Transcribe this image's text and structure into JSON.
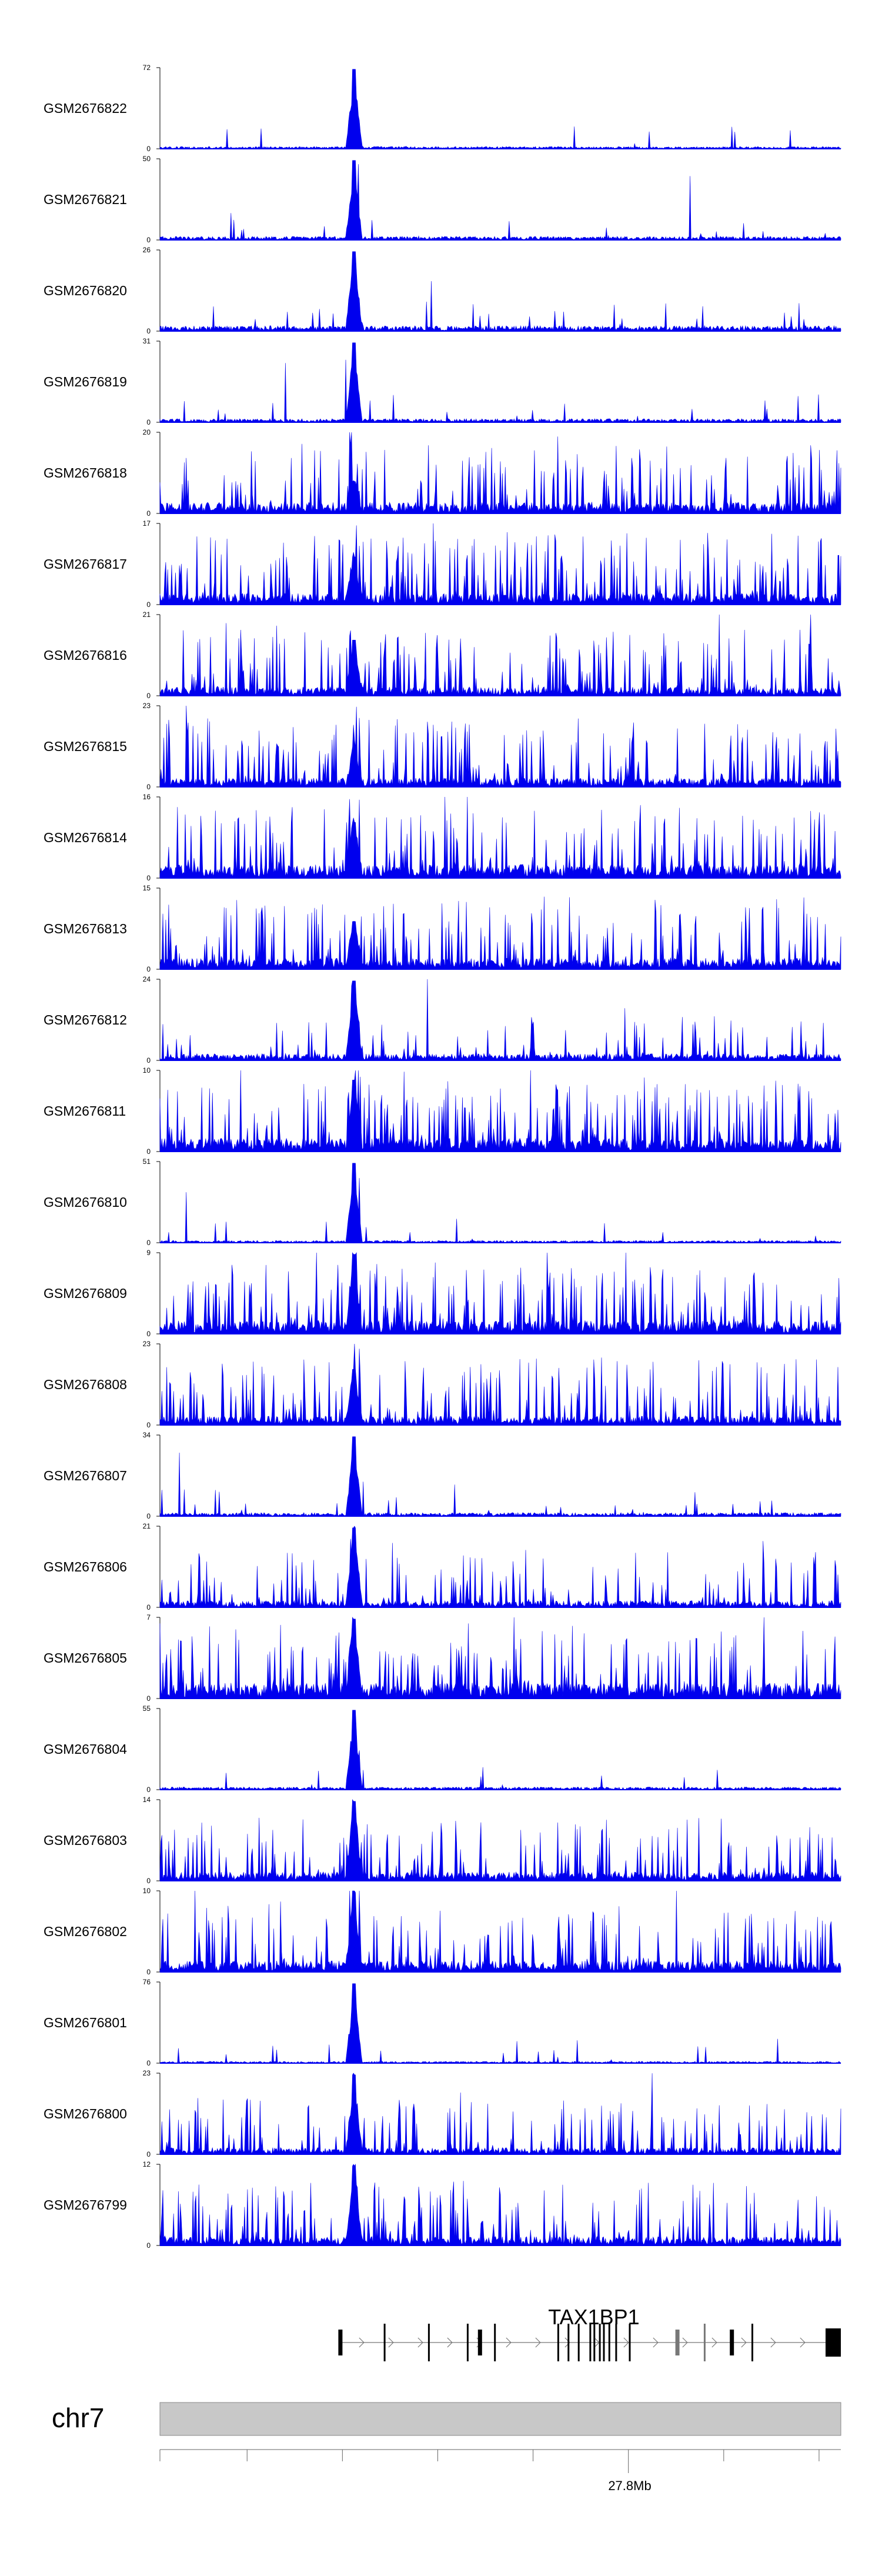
{
  "chart_data": {
    "type": "area",
    "fill_color": "#0000ee",
    "tracks": [
      {
        "name": "GSM2676822",
        "ymax": "72",
        "ymin": "0",
        "peak": 1.0,
        "bg": 0.05,
        "var": 0.1
      },
      {
        "name": "GSM2676821",
        "ymax": "50",
        "ymin": "0",
        "peak": 1.0,
        "bg": 0.08,
        "var": 0.12
      },
      {
        "name": "GSM2676820",
        "ymax": "26",
        "ymin": "0",
        "peak": 1.0,
        "bg": 0.12,
        "var": 0.15
      },
      {
        "name": "GSM2676819",
        "ymax": "31",
        "ymin": "0",
        "peak": 1.0,
        "bg": 0.08,
        "var": 0.12
      },
      {
        "name": "GSM2676818",
        "ymax": "20",
        "ymin": "0",
        "peak": 0.4,
        "bg": 0.25,
        "var": 0.9
      },
      {
        "name": "GSM2676817",
        "ymax": "17",
        "ymin": "0",
        "peak": 0.6,
        "bg": 0.25,
        "var": 0.95
      },
      {
        "name": "GSM2676816",
        "ymax": "21",
        "ymin": "0",
        "peak": 0.7,
        "bg": 0.2,
        "var": 0.85
      },
      {
        "name": "GSM2676815",
        "ymax": "23",
        "ymin": "0",
        "peak": 0.5,
        "bg": 0.2,
        "var": 0.95
      },
      {
        "name": "GSM2676814",
        "ymax": "16",
        "ymin": "0",
        "peak": 0.7,
        "bg": 0.3,
        "var": 0.9
      },
      {
        "name": "GSM2676813",
        "ymax": "15",
        "ymin": "0",
        "peak": 0.6,
        "bg": 0.25,
        "var": 0.95
      },
      {
        "name": "GSM2676812",
        "ymax": "24",
        "ymin": "0",
        "peak": 1.0,
        "bg": 0.15,
        "var": 0.45
      },
      {
        "name": "GSM2676811",
        "ymax": "10",
        "ymin": "0",
        "peak": 0.9,
        "bg": 0.3,
        "var": 0.9
      },
      {
        "name": "GSM2676810",
        "ymax": "51",
        "ymin": "0",
        "peak": 1.0,
        "bg": 0.05,
        "var": 0.1
      },
      {
        "name": "GSM2676809",
        "ymax": "9",
        "ymin": "0",
        "peak": 1.0,
        "bg": 0.3,
        "var": 0.9
      },
      {
        "name": "GSM2676808",
        "ymax": "23",
        "ymin": "0",
        "peak": 0.7,
        "bg": 0.2,
        "var": 0.95
      },
      {
        "name": "GSM2676807",
        "ymax": "34",
        "ymin": "0",
        "peak": 1.0,
        "bg": 0.08,
        "var": 0.15
      },
      {
        "name": "GSM2676806",
        "ymax": "21",
        "ymin": "0",
        "peak": 1.0,
        "bg": 0.15,
        "var": 0.7
      },
      {
        "name": "GSM2676805",
        "ymax": "7",
        "ymin": "0",
        "peak": 1.0,
        "bg": 0.35,
        "var": 0.9
      },
      {
        "name": "GSM2676804",
        "ymax": "55",
        "ymin": "0",
        "peak": 1.0,
        "bg": 0.06,
        "var": 0.1
      },
      {
        "name": "GSM2676803",
        "ymax": "14",
        "ymin": "0",
        "peak": 1.0,
        "bg": 0.2,
        "var": 0.8
      },
      {
        "name": "GSM2676802",
        "ymax": "10",
        "ymin": "0",
        "peak": 1.0,
        "bg": 0.25,
        "var": 0.9
      },
      {
        "name": "GSM2676801",
        "ymax": "76",
        "ymin": "0",
        "peak": 1.0,
        "bg": 0.04,
        "var": 0.08
      },
      {
        "name": "GSM2676800",
        "ymax": "23",
        "ymin": "0",
        "peak": 1.0,
        "bg": 0.15,
        "var": 0.65
      },
      {
        "name": "GSM2676799",
        "ymax": "12",
        "ymin": "0",
        "peak": 1.0,
        "bg": 0.2,
        "var": 0.85
      }
    ],
    "gene": {
      "name": "TAX1BP1",
      "strand": "+",
      "exons": [
        0.265,
        0.33,
        0.395,
        0.452,
        0.47,
        0.492,
        0.585,
        0.6,
        0.615,
        0.632,
        0.638,
        0.646,
        0.652,
        0.66,
        0.67,
        0.69,
        0.76,
        0.8,
        0.84,
        0.87
      ]
    },
    "chromosome": {
      "name": "chr7",
      "tick_label": "27.8Mb",
      "tick_label_fraction": 0.69
    }
  }
}
